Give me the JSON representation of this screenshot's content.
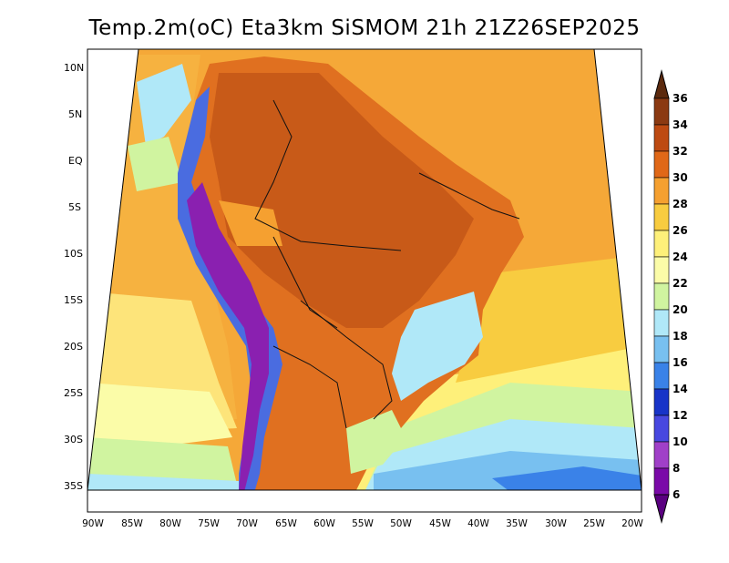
{
  "title": "Temp.2m(oC) Eta3km SiSMOM 21h 21Z26SEP2025",
  "lat_ticks": [
    "10N",
    "5N",
    "EQ",
    "5S",
    "10S",
    "15S",
    "20S",
    "25S",
    "30S",
    "35S"
  ],
  "lon_ticks": [
    "90W",
    "85W",
    "80W",
    "75W",
    "70W",
    "65W",
    "60W",
    "55W",
    "50W",
    "45W",
    "40W",
    "35W",
    "30W",
    "25W",
    "20W"
  ],
  "colorbar": {
    "unit": "oC",
    "levels": [
      "36",
      "34",
      "32",
      "30",
      "28",
      "26",
      "24",
      "22",
      "20",
      "18",
      "16",
      "14",
      "12",
      "10",
      "8",
      "6"
    ],
    "colors": [
      "#5c2a0e",
      "#8b3a12",
      "#bd4a12",
      "#e06818",
      "#f5a030",
      "#f8cc40",
      "#fef07a",
      "#fbfca8",
      "#d0f4a0",
      "#b0e8f8",
      "#78c0f0",
      "#3a82e8",
      "#1834c8",
      "#4848e0",
      "#a040c8",
      "#7a0aa8",
      "#5a0080"
    ]
  },
  "colors": {
    "ocean_warm": "#f5a838",
    "ocean_hot": "#f6b240",
    "ocean_mild": "#fde47a",
    "ocean_cool": "#fbfca8",
    "ocean_cold": "#d0f4a0",
    "ocean_colder": "#b0e8f8",
    "ocean_coldest": "#78c0f0",
    "land_hot": "#e07020",
    "land_very_hot": "#c85a18",
    "andes_cold": "#4a6ce0",
    "andes_peak": "#8a20b0"
  }
}
